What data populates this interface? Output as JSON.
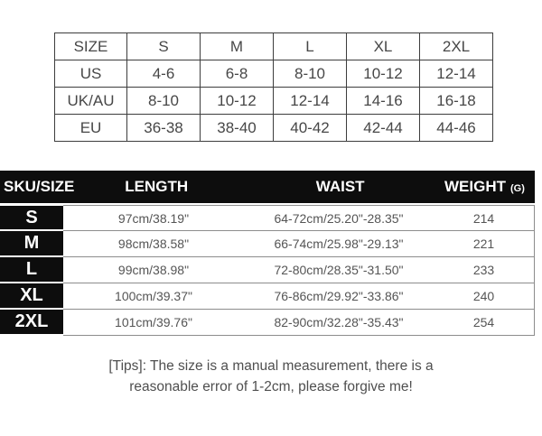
{
  "conversion_table": {
    "columns": [
      "SIZE",
      "S",
      "M",
      "L",
      "XL",
      "2XL"
    ],
    "rows": [
      {
        "region": "US",
        "values": [
          "4-6",
          "6-8",
          "8-10",
          "10-12",
          "12-14"
        ]
      },
      {
        "region": "UK/AU",
        "values": [
          "8-10",
          "10-12",
          "12-14",
          "14-16",
          "16-18"
        ]
      },
      {
        "region": "EU",
        "values": [
          "36-38",
          "38-40",
          "40-42",
          "42-44",
          "44-46"
        ]
      }
    ]
  },
  "spec_table": {
    "headers": {
      "sku": "SKU/SIZE",
      "length": "LENGTH",
      "waist": "WAIST",
      "weight": "WEIGHT",
      "weight_unit": "(G)"
    },
    "rows": [
      {
        "size": "S",
        "length": "97cm/38.19\"",
        "waist": "64-72cm/25.20\"-28.35\"",
        "weight": "214"
      },
      {
        "size": "M",
        "length": "98cm/38.58\"",
        "waist": "66-74cm/25.98\"-29.13\"",
        "weight": "221"
      },
      {
        "size": "L",
        "length": "99cm/38.98\"",
        "waist": "72-80cm/28.35\"-31.50\"",
        "weight": "233"
      },
      {
        "size": "XL",
        "length": "100cm/39.37\"",
        "waist": "76-86cm/29.92\"-33.86\"",
        "weight": "240"
      },
      {
        "size": "2XL",
        "length": "101cm/39.76\"",
        "waist": "82-90cm/32.28\"-35.43\"",
        "weight": "254"
      }
    ]
  },
  "tips": {
    "line1": "[Tips]: The size is a manual measurement, there is a",
    "line2": "reasonable error of 1-2cm, please forgive me!"
  },
  "colors": {
    "table_black": "#0d0d0d",
    "border_dark": "#3d3d3d",
    "separator_gray": "#8d8d8d",
    "text_dark": "#474747",
    "text_body": "#555555"
  }
}
